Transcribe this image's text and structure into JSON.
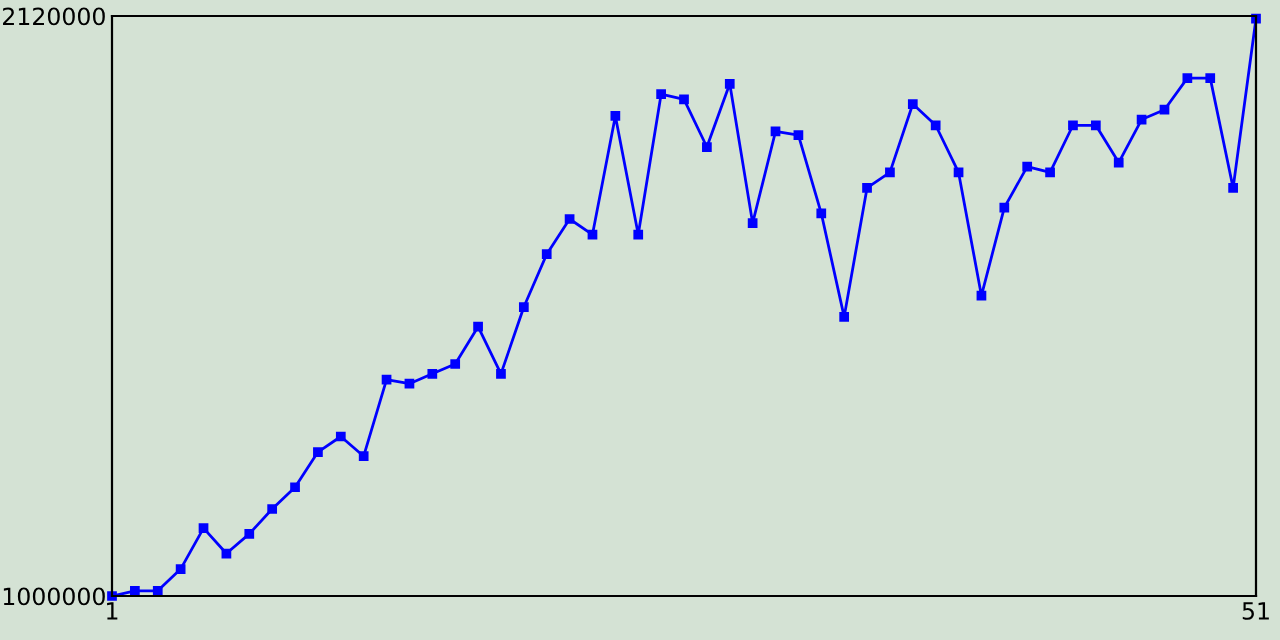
{
  "chart_data": {
    "type": "line",
    "x": [
      1,
      2,
      3,
      4,
      5,
      6,
      7,
      8,
      9,
      10,
      11,
      12,
      13,
      14,
      15,
      16,
      17,
      18,
      19,
      20,
      21,
      22,
      23,
      24,
      25,
      26,
      27,
      28,
      29,
      30,
      31,
      32,
      33,
      34,
      35,
      36,
      37,
      38,
      39,
      40,
      41,
      42,
      43,
      44,
      45,
      46,
      47,
      48,
      49,
      50,
      51
    ],
    "series": [
      {
        "color": "#0000ff",
        "values": [
          1000000,
          1010000,
          1010000,
          1052000,
          1131000,
          1082000,
          1120000,
          1168000,
          1210000,
          1278000,
          1308000,
          1270000,
          1418000,
          1410000,
          1429000,
          1448000,
          1520000,
          1429000,
          1558000,
          1660000,
          1728000,
          1698000,
          1927000,
          1698000,
          1969000,
          1959000,
          1867000,
          1989000,
          1720000,
          1897000,
          1890000,
          1739000,
          1539000,
          1788000,
          1818000,
          1950000,
          1909000,
          1818000,
          1580000,
          1750000,
          1829000,
          1818000,
          1909000,
          1909000,
          1837000,
          1920000,
          1939000,
          2000000,
          2000000,
          1788000,
          2115000
        ]
      }
    ],
    "xlim": [
      1,
      51
    ],
    "ylim": [
      1000000,
      2120000
    ],
    "xticks": [
      1,
      51
    ],
    "yticks": [
      1000000,
      2120000
    ],
    "marker": "square",
    "line_style": "solid",
    "grid": false,
    "legend": false
  }
}
